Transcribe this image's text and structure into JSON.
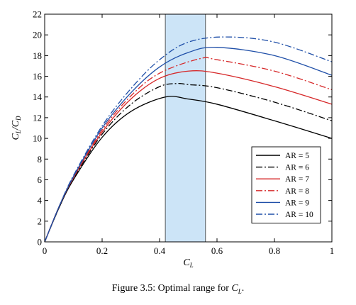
{
  "chart_data": {
    "type": "line",
    "xlabel": {
      "main": "C",
      "sub": "L"
    },
    "ylabel": {
      "num_main": "C",
      "num_sub": "L",
      "den_main": "C",
      "den_sub": "D"
    },
    "xlim": [
      0,
      1
    ],
    "ylim": [
      0,
      22
    ],
    "xticks": [
      0,
      0.2,
      0.4,
      0.6,
      0.8,
      1
    ],
    "xtick_labels": [
      "0",
      "0.2",
      "0.4",
      "0.6",
      "0.8",
      "1"
    ],
    "yticks": [
      0,
      2,
      4,
      6,
      8,
      10,
      12,
      14,
      16,
      18,
      20,
      22
    ],
    "ytick_labels": [
      "0",
      "2",
      "4",
      "6",
      "8",
      "10",
      "12",
      "14",
      "16",
      "18",
      "20",
      "22"
    ],
    "grid": false,
    "legend_position": "bottom-right",
    "shaded_region": {
      "x_start": 0.42,
      "x_end": 0.56,
      "color": "#cce4f7"
    },
    "series": [
      {
        "name": "AR = 5",
        "AR": 5,
        "color": "#000000",
        "style": "solid",
        "x": [
          0.05,
          0.1,
          0.2,
          0.3,
          0.42,
          0.5,
          0.6,
          0.8,
          1.0
        ],
        "y": [
          3.3,
          6.0,
          10.1,
          12.6,
          14.0,
          13.8,
          13.3,
          11.7,
          10.0
        ]
      },
      {
        "name": "AR = 6",
        "AR": 6,
        "color": "#000000",
        "style": "dashdot",
        "x": [
          0.05,
          0.1,
          0.2,
          0.3,
          0.4,
          0.46,
          0.5,
          0.6,
          0.8,
          1.0
        ],
        "y": [
          3.3,
          6.1,
          10.4,
          13.3,
          15.0,
          15.3,
          15.2,
          14.9,
          13.5,
          11.7
        ]
      },
      {
        "name": "AR = 7",
        "AR": 7,
        "color": "#d62728",
        "style": "solid",
        "x": [
          0.05,
          0.1,
          0.2,
          0.3,
          0.4,
          0.5,
          0.6,
          0.8,
          1.0
        ],
        "y": [
          3.4,
          6.2,
          10.6,
          13.8,
          15.8,
          16.5,
          16.3,
          15.0,
          13.3
        ]
      },
      {
        "name": "AR = 8",
        "AR": 8,
        "color": "#d62728",
        "style": "dashdot",
        "x": [
          0.05,
          0.1,
          0.2,
          0.3,
          0.4,
          0.54,
          0.6,
          0.8,
          1.0
        ],
        "y": [
          3.4,
          6.2,
          10.8,
          14.1,
          16.3,
          17.7,
          17.6,
          16.5,
          14.7
        ]
      },
      {
        "name": "AR = 9",
        "AR": 9,
        "color": "#1f4fa8",
        "style": "solid",
        "x": [
          0.05,
          0.1,
          0.2,
          0.3,
          0.4,
          0.5,
          0.6,
          0.8,
          1.0
        ],
        "y": [
          3.4,
          6.3,
          11.0,
          14.4,
          16.9,
          18.3,
          18.8,
          18.0,
          16.1
        ]
      },
      {
        "name": "AR = 10",
        "AR": 10,
        "color": "#1f4fa8",
        "style": "dashdot",
        "x": [
          0.05,
          0.1,
          0.2,
          0.3,
          0.4,
          0.5,
          0.63,
          0.8,
          1.0
        ],
        "y": [
          3.4,
          6.4,
          11.2,
          14.8,
          17.6,
          19.3,
          19.8,
          19.3,
          17.4
        ]
      }
    ]
  },
  "caption": {
    "prefix": "Figure 3.5: Optimal range for ",
    "var_main": "C",
    "var_sub": "L",
    "suffix": "."
  }
}
